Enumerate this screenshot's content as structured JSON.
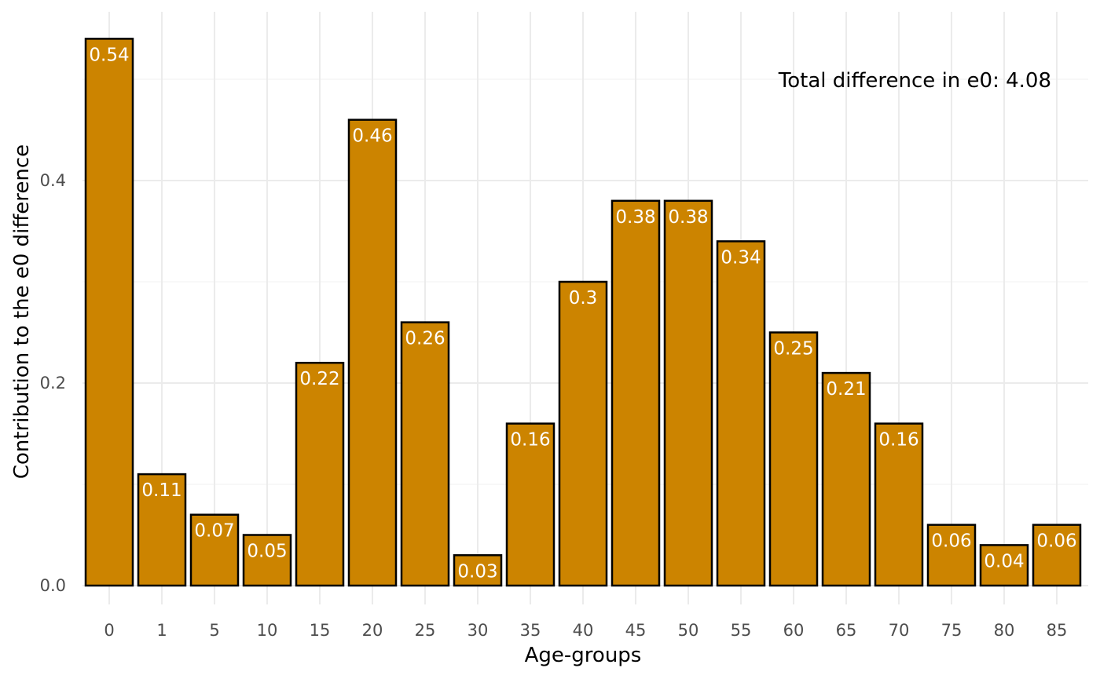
{
  "chart_data": {
    "type": "bar",
    "categories": [
      "0",
      "1",
      "5",
      "10",
      "15",
      "20",
      "25",
      "30",
      "35",
      "40",
      "45",
      "50",
      "55",
      "60",
      "65",
      "70",
      "75",
      "80",
      "85"
    ],
    "values": [
      0.54,
      0.11,
      0.07,
      0.05,
      0.22,
      0.46,
      0.26,
      0.03,
      0.16,
      0.3,
      0.38,
      0.38,
      0.34,
      0.25,
      0.21,
      0.16,
      0.06,
      0.04,
      0.06
    ],
    "data_labels": [
      "0.54",
      "0.11",
      "0.07",
      "0.05",
      "0.22",
      "0.46",
      "0.26",
      "0.03",
      "0.16",
      "0.3",
      "0.38",
      "0.38",
      "0.34",
      "0.25",
      "0.21",
      "0.16",
      "0.06",
      "0.04",
      "0.06"
    ],
    "xlabel": "Age-groups",
    "ylabel": "Contribution to the e0 difference",
    "ylim": [
      0,
      0.54
    ],
    "y_ticks": [
      "0.0",
      "0.2",
      "0.4"
    ],
    "y_tick_values": [
      0,
      0.2,
      0.4
    ],
    "annotation": "Total difference in e0: 4.08",
    "grid": true,
    "bar_color": "#cc8400",
    "bar_outline": "#000000"
  }
}
